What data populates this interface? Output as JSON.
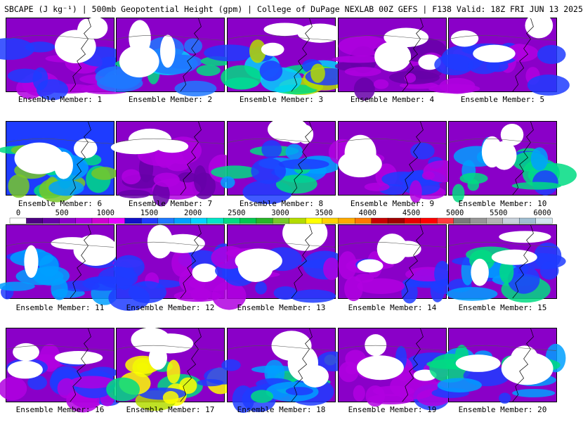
{
  "title": "SBCAPE (J kg⁻¹) | 500mb Geopotential Height (gpm) | College of DuPage NEXLAB 00Z GEFS | F138 Valid: 18Z FRI JUN 13 2025",
  "colorbar": {
    "tick_labels": [
      "0",
      "500",
      "1000",
      "1500",
      "2000",
      "2500",
      "3000",
      "3500",
      "4000",
      "4500",
      "5000",
      "5500",
      "6000"
    ],
    "colors": [
      "#ffffff",
      "#4c0082",
      "#6600a8",
      "#8a00c8",
      "#b000e0",
      "#d000d0",
      "#e800ff",
      "#1010c8",
      "#1e3cff",
      "#1e78ff",
      "#00a0ff",
      "#00d2ff",
      "#00e6c8",
      "#00dc82",
      "#00c850",
      "#28b428",
      "#78c828",
      "#b4dc00",
      "#ffff00",
      "#ffd200",
      "#ffaa00",
      "#ff7800",
      "#c80000",
      "#a00000",
      "#e60000",
      "#ff0000",
      "#ff3c3c",
      "#7a7a7a",
      "#969696",
      "#b4b4b4",
      "#c8d2dc",
      "#a0bed2",
      "#d2e6f0"
    ]
  },
  "members": [
    {
      "label": "Ensemble Member: 1"
    },
    {
      "label": "Ensemble Member: 2"
    },
    {
      "label": "Ensemble Member: 3"
    },
    {
      "label": "Ensemble Member: 4"
    },
    {
      "label": "Ensemble Member: 5"
    },
    {
      "label": "Ensemble Member: 6"
    },
    {
      "label": "Ensemble Member: 7"
    },
    {
      "label": "Ensemble Member: 8"
    },
    {
      "label": "Ensemble Member: 9"
    },
    {
      "label": "Ensemble Member: 10"
    },
    {
      "label": "Ensemble Member: 11"
    },
    {
      "label": "Ensemble Member: 12"
    },
    {
      "label": "Ensemble Member: 13"
    },
    {
      "label": "Ensemble Member: 14"
    },
    {
      "label": "Ensemble Member: 15"
    },
    {
      "label": "Ensemble Member: 16"
    },
    {
      "label": "Ensemble Member: 17"
    },
    {
      "label": "Ensemble Member: 18"
    },
    {
      "label": "Ensemble Member: 19"
    },
    {
      "label": "Ensemble Member: 20"
    }
  ]
}
